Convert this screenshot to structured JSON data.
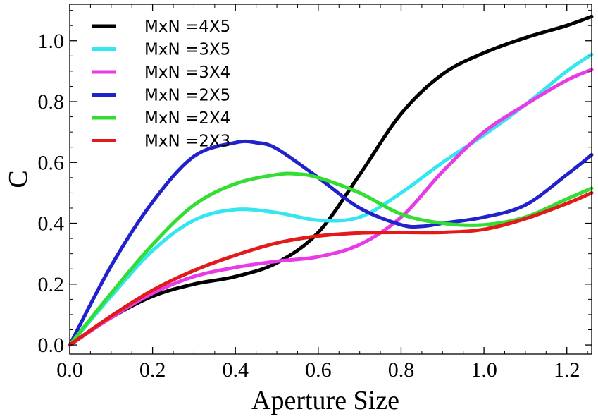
{
  "chart_data": {
    "type": "line",
    "title": "",
    "xlabel": "Aperture Size",
    "ylabel": "C",
    "xlim": [
      0,
      1.26
    ],
    "ylim": [
      -0.03,
      1.12
    ],
    "xticks": [
      "0.0",
      "0.2",
      "0.4",
      "0.6",
      "0.8",
      "1.0",
      "1.2"
    ],
    "yticks": [
      "0.0",
      "0.2",
      "0.4",
      "0.6",
      "0.8",
      "1.0"
    ],
    "legend_position": "top-left",
    "series": [
      {
        "name": "MxN =4X5",
        "color": "#000000",
        "x": [
          0,
          0.1,
          0.2,
          0.3,
          0.4,
          0.5,
          0.6,
          0.7,
          0.8,
          0.9,
          1.0,
          1.1,
          1.2,
          1.26
        ],
        "y": [
          0,
          0.09,
          0.16,
          0.2,
          0.225,
          0.27,
          0.37,
          0.56,
          0.76,
          0.89,
          0.96,
          1.01,
          1.05,
          1.08
        ]
      },
      {
        "name": "MxN =3X5",
        "color": "#33e6f0",
        "x": [
          0,
          0.1,
          0.2,
          0.3,
          0.4,
          0.5,
          0.6,
          0.7,
          0.8,
          0.9,
          1.0,
          1.1,
          1.2,
          1.26
        ],
        "y": [
          0,
          0.16,
          0.31,
          0.41,
          0.445,
          0.435,
          0.41,
          0.42,
          0.5,
          0.6,
          0.69,
          0.79,
          0.9,
          0.955
        ]
      },
      {
        "name": "MxN =3X4",
        "color": "#e63be6",
        "x": [
          0,
          0.1,
          0.2,
          0.3,
          0.4,
          0.5,
          0.6,
          0.7,
          0.8,
          0.9,
          1.0,
          1.1,
          1.2,
          1.26
        ],
        "y": [
          0,
          0.09,
          0.17,
          0.225,
          0.255,
          0.275,
          0.29,
          0.33,
          0.42,
          0.57,
          0.7,
          0.79,
          0.87,
          0.905
        ]
      },
      {
        "name": "MxN =2X5",
        "color": "#2222cc",
        "x": [
          0,
          0.1,
          0.2,
          0.3,
          0.4,
          0.45,
          0.5,
          0.6,
          0.7,
          0.8,
          0.85,
          0.9,
          1.0,
          1.1,
          1.2,
          1.26
        ],
        "y": [
          0,
          0.26,
          0.47,
          0.62,
          0.665,
          0.665,
          0.645,
          0.55,
          0.45,
          0.395,
          0.39,
          0.4,
          0.42,
          0.46,
          0.56,
          0.625
        ]
      },
      {
        "name": "MxN =2X4",
        "color": "#33dd33",
        "x": [
          0,
          0.1,
          0.2,
          0.3,
          0.4,
          0.5,
          0.55,
          0.6,
          0.7,
          0.8,
          0.9,
          1.0,
          1.1,
          1.2,
          1.26
        ],
        "y": [
          0,
          0.17,
          0.33,
          0.46,
          0.53,
          0.56,
          0.562,
          0.55,
          0.5,
          0.43,
          0.4,
          0.395,
          0.42,
          0.48,
          0.515
        ]
      },
      {
        "name": "MxN =2X3",
        "color": "#e31a1a",
        "x": [
          0,
          0.1,
          0.2,
          0.3,
          0.4,
          0.5,
          0.6,
          0.7,
          0.8,
          0.9,
          1.0,
          1.1,
          1.2,
          1.26
        ],
        "y": [
          0,
          0.095,
          0.18,
          0.245,
          0.295,
          0.335,
          0.358,
          0.368,
          0.37,
          0.37,
          0.38,
          0.415,
          0.465,
          0.5
        ]
      }
    ]
  }
}
